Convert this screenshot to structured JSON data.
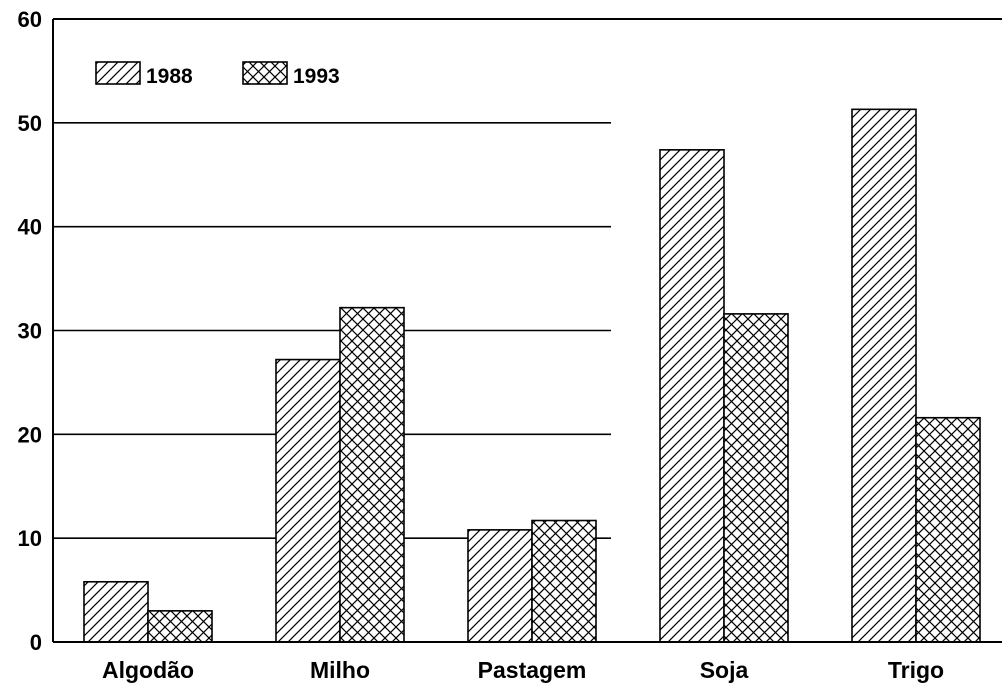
{
  "chart_data": {
    "type": "bar",
    "categories": [
      "Algodão",
      "Milho",
      "Pastagem",
      "Soja",
      "Trigo"
    ],
    "series": [
      {
        "name": "1988",
        "pattern": "diagonal-hatch",
        "values": [
          5.8,
          27.2,
          10.8,
          47.4,
          51.3
        ]
      },
      {
        "name": "1993",
        "pattern": "cross-hatch",
        "values": [
          3.0,
          32.2,
          11.7,
          31.6,
          21.6
        ]
      }
    ],
    "yticks": [
      "0",
      "10",
      "20",
      "30",
      "40",
      "50",
      "60"
    ],
    "ylim": [
      0,
      60
    ],
    "grid": true,
    "legend_position": "top-left",
    "colors": {
      "ink": "#000000",
      "background": "#ffffff"
    }
  }
}
